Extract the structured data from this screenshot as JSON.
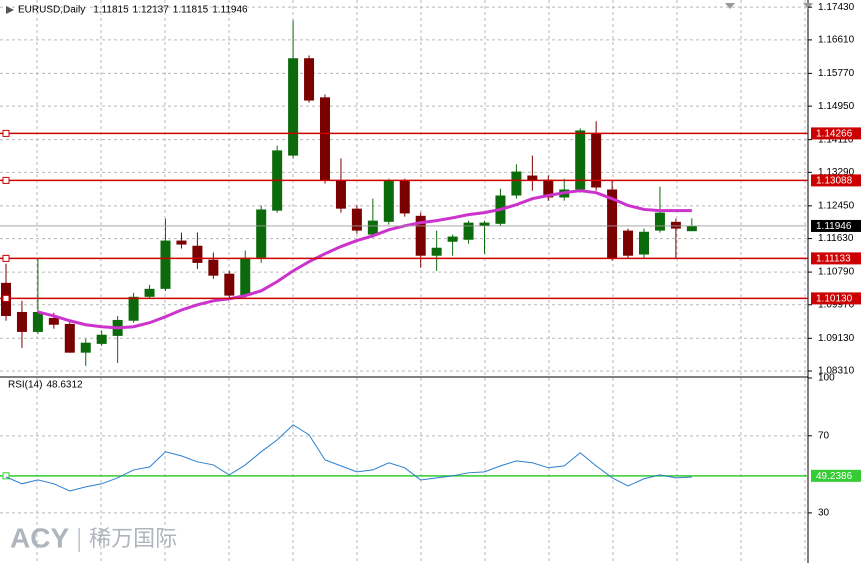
{
  "chart_data": [
    {
      "type": "candlestick",
      "title": "EURUSD,Daily",
      "open": [
        1.1052,
        1.0979,
        1.0929,
        1.0964,
        1.0949,
        1.0877,
        1.0899,
        1.0919,
        1.0957,
        1.1017,
        1.1037,
        1.1158,
        1.1145,
        1.111,
        1.1075,
        1.102,
        1.1115,
        1.1233,
        1.1371,
        1.1615,
        1.1517,
        1.1308,
        1.1238,
        1.1173,
        1.1205,
        1.1308,
        1.122,
        1.112,
        1.1155,
        1.116,
        1.1195,
        1.12,
        1.1271,
        1.1321,
        1.1311,
        1.1266,
        1.1286,
        1.1427,
        1.1286,
        1.1183,
        1.1123,
        1.1183,
        1.1205,
        1.11815
      ],
      "high": [
        1.11,
        1.1007,
        1.1113,
        1.0977,
        1.0957,
        1.0912,
        1.0932,
        1.0969,
        1.1027,
        1.1047,
        1.1213,
        1.1178,
        1.1178,
        1.1128,
        1.1082,
        1.1133,
        1.1246,
        1.1396,
        1.171,
        1.1622,
        1.1524,
        1.1364,
        1.1246,
        1.1263,
        1.1313,
        1.1313,
        1.1228,
        1.1183,
        1.1173,
        1.1208,
        1.1208,
        1.1288,
        1.1349,
        1.1371,
        1.1321,
        1.1313,
        1.1439,
        1.1457,
        1.1308,
        1.1188,
        1.1188,
        1.1293,
        1.1213,
        1.12137
      ],
      "low": [
        1.0957,
        1.0889,
        1.0924,
        1.0937,
        1.0877,
        1.0844,
        1.0894,
        1.0851,
        1.0952,
        1.1012,
        1.1032,
        1.1138,
        1.1087,
        1.1062,
        1.1015,
        1.1015,
        1.1102,
        1.1228,
        1.1364,
        1.1504,
        1.1301,
        1.1228,
        1.1175,
        1.1165,
        1.1198,
        1.1218,
        1.109,
        1.1082,
        1.112,
        1.115,
        1.1125,
        1.1195,
        1.1263,
        1.1283,
        1.1258,
        1.1258,
        1.1278,
        1.1283,
        1.1108,
        1.1113,
        1.1115,
        1.1178,
        1.1113,
        1.11815
      ],
      "close": [
        1.0969,
        1.0929,
        1.0979,
        1.0947,
        1.0877,
        1.0902,
        1.0922,
        1.0959,
        1.1017,
        1.1037,
        1.1158,
        1.1148,
        1.1102,
        1.107,
        1.102,
        1.1115,
        1.1236,
        1.1384,
        1.1615,
        1.1509,
        1.1308,
        1.1238,
        1.1183,
        1.1208,
        1.1308,
        1.1226,
        1.112,
        1.114,
        1.1168,
        1.1203,
        1.1203,
        1.1271,
        1.1331,
        1.1308,
        1.1266,
        1.1286,
        1.1434,
        1.1291,
        1.1113,
        1.112,
        1.118,
        1.1228,
        1.1188,
        1.11946
      ],
      "up_color": "#0b6b0b",
      "down_color": "#7b0000",
      "ma": {
        "color": "#cc33cc",
        "values": [
          null,
          null,
          1.0979,
          1.0969,
          1.0957,
          1.0947,
          1.0942,
          1.0939,
          1.0942,
          1.0952,
          1.0967,
          1.0984,
          1.0997,
          1.1007,
          1.1012,
          1.102,
          1.1032,
          1.1055,
          1.1082,
          1.1105,
          1.1125,
          1.1143,
          1.1158,
          1.117,
          1.1185,
          1.1195,
          1.1203,
          1.1208,
          1.1215,
          1.1223,
          1.1228,
          1.1236,
          1.1248,
          1.1263,
          1.1271,
          1.1278,
          1.1283,
          1.1278,
          1.1263,
          1.1246,
          1.1236,
          1.1233,
          1.1233,
          1.1233
        ]
      },
      "levels": [
        1.14266,
        1.13088,
        1.11133,
        {
          "value": 1.1013,
          "label": "1.10130"
        }
      ],
      "level_color": "#cc0000",
      "price_line_color": "#9a9a9a",
      "ylim": [
        1.0816,
        1.1761
      ],
      "yticks": [
        {
          "value": 1.1743,
          "label": "1.17430"
        },
        {
          "value": 1.1661,
          "label": "1.16610"
        },
        {
          "value": 1.1577,
          "label": "1.15770"
        },
        {
          "value": 1.1495,
          "label": "1.14950"
        },
        {
          "value": 1.1411,
          "label": "1.14110"
        },
        {
          "value": 1.1329,
          "label": "1.13290"
        },
        {
          "value": 1.1245,
          "label": "1.12450"
        },
        {
          "value": 1.1163,
          "label": "1.11630"
        },
        {
          "value": 1.1079,
          "label": "1.10790"
        },
        {
          "value": 1.0997,
          "label": "1.09970"
        },
        {
          "value": 1.0913,
          "label": "1.09130"
        },
        {
          "value": 1.0831,
          "label": "1.08310"
        }
      ],
      "grid": true
    },
    {
      "type": "line",
      "title": "RSI(14)",
      "values": [
        48.7,
        45.1,
        47.1,
        45.1,
        41.4,
        43.5,
        45.1,
        48.2,
        52.3,
        53.8,
        61.7,
        59.6,
        56.5,
        54.9,
        49.7,
        54.9,
        61.7,
        67.9,
        75.7,
        70.5,
        57.5,
        54.4,
        51.3,
        52.3,
        56.0,
        53.4,
        47.1,
        48.2,
        49.2,
        50.8,
        51.3,
        54.4,
        57.0,
        56.0,
        53.4,
        54.4,
        61.2,
        54.4,
        48.2,
        44.0,
        47.7,
        49.7,
        48.2,
        48.6312
      ],
      "color": "#2a7fd0",
      "ylim": [
        4,
        100
      ],
      "yticks": [
        100,
        70,
        30
      ],
      "level": 49.2386,
      "level_color": "#33cc33",
      "grid": true
    }
  ],
  "watermark": {
    "brand": "ACY",
    "name": "稀万国际"
  }
}
